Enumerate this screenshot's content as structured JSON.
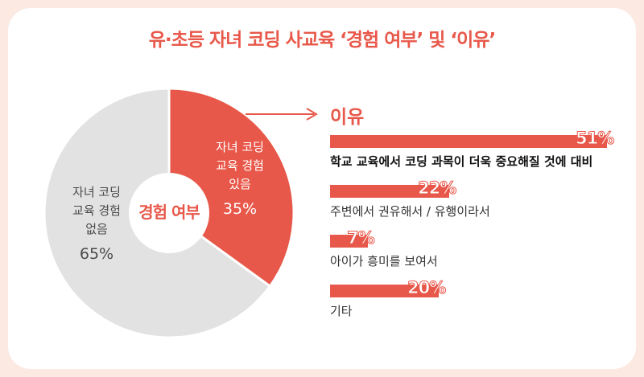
{
  "title": "유·초등 자녀 코딩 사교육 ‘경험 여부’ 및 ‘이유’",
  "colors": {
    "accent": "#e8584a",
    "grey": "#e2e2e2",
    "background": "#fbe9e2"
  },
  "chart_data": [
    {
      "type": "pie",
      "center_label": "경험 여부",
      "slices": [
        {
          "label_line1": "자녀 코딩",
          "label_line2": "교육 경험",
          "label_line3": "있음",
          "value": 35,
          "value_label": "35%",
          "color": "#e8584a"
        },
        {
          "label_line1": "자녀 코딩",
          "label_line2": "교육 경험",
          "label_line3": "없음",
          "value": 65,
          "value_label": "65%",
          "color": "#e2e2e2"
        }
      ]
    },
    {
      "type": "bar",
      "title": "이유",
      "items": [
        {
          "label": "학교 교육에서 코딩 과목이 더욱 중요해질 것에 대비",
          "value": 51,
          "value_label": "51%"
        },
        {
          "label": "주변에서 권유해서 / 유행이라서",
          "value": 22,
          "value_label": "22%"
        },
        {
          "label": "아이가 흥미를 보여서",
          "value": 7,
          "value_label": "7%"
        },
        {
          "label": "기타",
          "value": 20,
          "value_label": "20%"
        }
      ]
    }
  ]
}
